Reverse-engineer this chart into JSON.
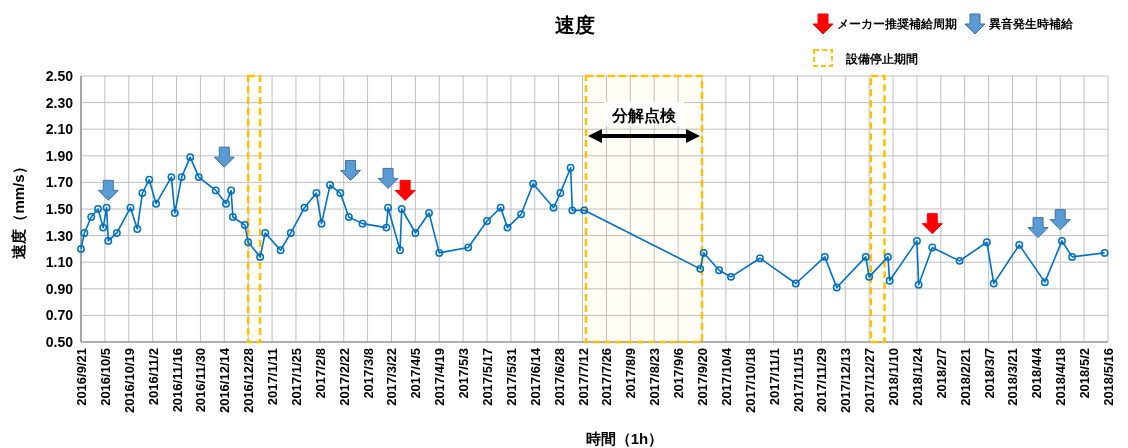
{
  "chart_data": {
    "type": "line",
    "title": "速度",
    "xlabel": "時間（1h）",
    "ylabel": "速度（mm/s）",
    "xlim": [
      "2016-09-21",
      "2018-05-16"
    ],
    "xticks": [
      {
        "value": "2016-09-21",
        "label": "2016/9/21"
      },
      {
        "value": "2016-10-05",
        "label": "2016/10/5"
      },
      {
        "value": "2016-10-19",
        "label": "2016/10/19"
      },
      {
        "value": "2016-11-02",
        "label": "2016/11/2"
      },
      {
        "value": "2016-11-16",
        "label": "2016/11/16"
      },
      {
        "value": "2016-11-30",
        "label": "2016/11/30"
      },
      {
        "value": "2016-12-14",
        "label": "2016/12/14"
      },
      {
        "value": "2016-12-28",
        "label": "2016/12/28"
      },
      {
        "value": "2017-01-11",
        "label": "2017/1/11"
      },
      {
        "value": "2017-01-25",
        "label": "2017/1/25"
      },
      {
        "value": "2017-02-08",
        "label": "2017/2/8"
      },
      {
        "value": "2017-02-22",
        "label": "2017/2/22"
      },
      {
        "value": "2017-03-08",
        "label": "2017/3/8"
      },
      {
        "value": "2017-03-22",
        "label": "2017/3/22"
      },
      {
        "value": "2017-04-05",
        "label": "2017/4/5"
      },
      {
        "value": "2017-04-19",
        "label": "2017/4/19"
      },
      {
        "value": "2017-05-03",
        "label": "2017/5/3"
      },
      {
        "value": "2017-05-17",
        "label": "2017/5/17"
      },
      {
        "value": "2017-05-31",
        "label": "2017/5/31"
      },
      {
        "value": "2017-06-14",
        "label": "2017/6/14"
      },
      {
        "value": "2017-06-28",
        "label": "2017/6/28"
      },
      {
        "value": "2017-07-12",
        "label": "2017/7/12"
      },
      {
        "value": "2017-07-26",
        "label": "2017/7/26"
      },
      {
        "value": "2017-08-09",
        "label": "2017/8/9"
      },
      {
        "value": "2017-08-23",
        "label": "2017/8/23"
      },
      {
        "value": "2017-09-06",
        "label": "2017/9/6"
      },
      {
        "value": "2017-09-20",
        "label": "2017/9/20"
      },
      {
        "value": "2017-10-04",
        "label": "2017/10/4"
      },
      {
        "value": "2017-10-18",
        "label": "2017/10/18"
      },
      {
        "value": "2017-11-01",
        "label": "2017/11/1"
      },
      {
        "value": "2017-11-15",
        "label": "2017/11/15"
      },
      {
        "value": "2017-11-29",
        "label": "2017/11/29"
      },
      {
        "value": "2017-12-13",
        "label": "2017/12/13"
      },
      {
        "value": "2017-12-27",
        "label": "2017/12/27"
      },
      {
        "value": "2018-01-10",
        "label": "2018/1/10"
      },
      {
        "value": "2018-01-24",
        "label": "2018/1/24"
      },
      {
        "value": "2018-02-07",
        "label": "2018/2/7"
      },
      {
        "value": "2018-02-21",
        "label": "2018/2/21"
      },
      {
        "value": "2018-03-07",
        "label": "2018/3/7"
      },
      {
        "value": "2018-03-21",
        "label": "2018/3/21"
      },
      {
        "value": "2018-04-04",
        "label": "2018/4/4"
      },
      {
        "value": "2018-04-18",
        "label": "2018/4/18"
      },
      {
        "value": "2018-05-02",
        "label": "2018/5/2"
      },
      {
        "value": "2018-05-16",
        "label": "2018/5/16"
      }
    ],
    "ylim": [
      0.5,
      2.5
    ],
    "yticks": [
      {
        "value": 0.5,
        "label": "0.50"
      },
      {
        "value": 0.7,
        "label": "0.70"
      },
      {
        "value": 0.9,
        "label": "0.90"
      },
      {
        "value": 1.1,
        "label": "1.10"
      },
      {
        "value": 1.3,
        "label": "1.30"
      },
      {
        "value": 1.5,
        "label": "1.50"
      },
      {
        "value": 1.7,
        "label": "1.70"
      },
      {
        "value": 1.9,
        "label": "1.90"
      },
      {
        "value": 2.1,
        "label": "2.10"
      },
      {
        "value": 2.3,
        "label": "2.30"
      },
      {
        "value": 2.5,
        "label": "2.50"
      }
    ],
    "grid": true,
    "legend": "top right",
    "series": [
      {
        "color": "#0070c0",
        "marker": "circle",
        "x": [
          "2016-09-21",
          "2016-09-23",
          "2016-09-27",
          "2016-10-01",
          "2016-10-04",
          "2016-10-06",
          "2016-10-07",
          "2016-10-12",
          "2016-10-20",
          "2016-10-24",
          "2016-10-27",
          "2016-10-31",
          "2016-11-04",
          "2016-11-13",
          "2016-11-15",
          "2016-11-19",
          "2016-11-24",
          "2016-11-29",
          "2016-12-09",
          "2016-12-15",
          "2016-12-18",
          "2016-12-19",
          "2016-12-26",
          "2016-12-28",
          "2017-01-04",
          "2017-01-07",
          "2017-01-16",
          "2017-01-22",
          "2017-01-30",
          "2017-02-06",
          "2017-02-09",
          "2017-02-14",
          "2017-02-20",
          "2017-02-25",
          "2017-03-05",
          "2017-03-19",
          "2017-03-20",
          "2017-03-27",
          "2017-03-28",
          "2017-04-05",
          "2017-04-13",
          "2017-04-19",
          "2017-05-06",
          "2017-05-17",
          "2017-05-25",
          "2017-05-29",
          "2017-06-06",
          "2017-06-13",
          "2017-06-25",
          "2017-06-29",
          "2017-07-05",
          "2017-07-06",
          "2017-07-13",
          "2017-09-19",
          "2017-09-21",
          "2017-09-30",
          "2017-10-07",
          "2017-10-24",
          "2017-11-14",
          "2017-12-01",
          "2017-12-08",
          "2017-12-25",
          "2017-12-27",
          "2018-01-07",
          "2018-01-08",
          "2018-01-24",
          "2018-01-25",
          "2018-02-02",
          "2018-02-18",
          "2018-03-06",
          "2018-03-10",
          "2018-03-25",
          "2018-04-09",
          "2018-04-19",
          "2018-04-25",
          "2018-05-14"
        ],
        "values": [
          1.2,
          1.32,
          1.44,
          1.5,
          1.36,
          1.51,
          1.26,
          1.32,
          1.51,
          1.35,
          1.62,
          1.72,
          1.54,
          1.74,
          1.47,
          1.74,
          1.89,
          1.74,
          1.64,
          1.54,
          1.64,
          1.44,
          1.38,
          1.25,
          1.14,
          1.32,
          1.19,
          1.32,
          1.51,
          1.62,
          1.39,
          1.68,
          1.62,
          1.44,
          1.39,
          1.36,
          1.51,
          1.19,
          1.5,
          1.32,
          1.47,
          1.17,
          1.21,
          1.41,
          1.51,
          1.36,
          1.46,
          1.69,
          1.51,
          1.62,
          1.81,
          1.49,
          1.49,
          1.05,
          1.17,
          1.04,
          0.99,
          1.13,
          0.94,
          1.14,
          0.91,
          1.14,
          0.99,
          1.14,
          0.96,
          1.26,
          0.93,
          1.21,
          1.11,
          1.25,
          0.94,
          1.23,
          0.95,
          1.26,
          1.14,
          1.17
        ]
      },
      {
        "name": "メーカー推奨補給周期",
        "type": "scatter",
        "color": "#ff0000",
        "x": [
          "2017-03-30",
          "2018-02-02"
        ],
        "values": [
          1.64,
          1.39
        ]
      },
      {
        "name": "異音発生時補給",
        "type": "scatter",
        "color": "#5b9bd5",
        "x": [
          "2016-10-07",
          "2016-12-14",
          "2017-02-26",
          "2017-03-20",
          "2018-04-05",
          "2018-04-18"
        ],
        "values": [
          1.64,
          1.89,
          1.79,
          1.73,
          1.36,
          1.42
        ]
      }
    ],
    "bands": [
      {
        "axis": "x",
        "from": "2016-12-28",
        "to": "2017-01-04",
        "color": "#ffc000",
        "label": "設備停止期間"
      },
      {
        "axis": "x",
        "from": "2017-07-14",
        "to": "2017-09-20",
        "color": "#ffc000"
      },
      {
        "axis": "x",
        "from": "2017-12-28",
        "to": "2018-01-05",
        "color": "#ffc000"
      }
    ],
    "annotations": [
      "分解点検"
    ]
  }
}
